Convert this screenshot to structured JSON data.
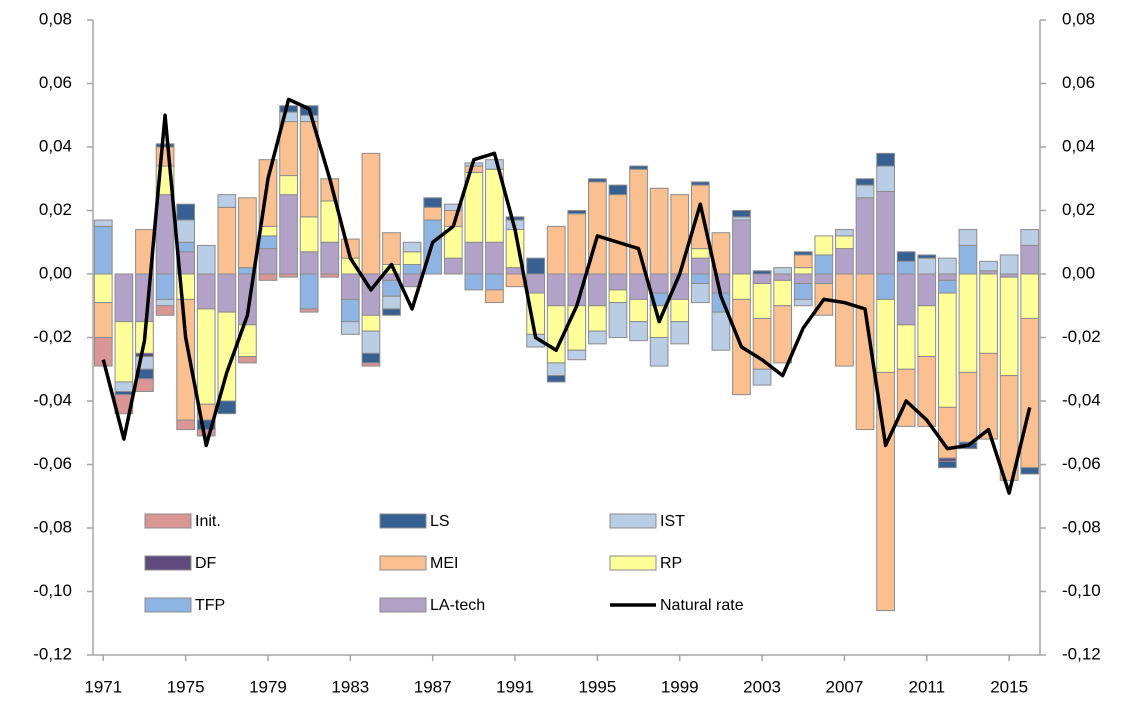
{
  "chart_data": {
    "type": "stacked-bar-line",
    "x": [
      1971,
      1972,
      1973,
      1974,
      1975,
      1976,
      1977,
      1978,
      1979,
      1980,
      1981,
      1982,
      1983,
      1984,
      1985,
      1986,
      1987,
      1988,
      1989,
      1990,
      1991,
      1992,
      1993,
      1994,
      1995,
      1996,
      1997,
      1998,
      1999,
      2000,
      2001,
      2002,
      2003,
      2004,
      2005,
      2006,
      2007,
      2008,
      2009,
      2010,
      2011,
      2012,
      2013,
      2014,
      2015,
      2016
    ],
    "xlim": [
      1970.5,
      2016.5
    ],
    "xticks": [
      1971,
      1975,
      1979,
      1983,
      1987,
      1991,
      1995,
      1999,
      2003,
      2007,
      2011,
      2015
    ],
    "ylim": [
      -0.12,
      0.08
    ],
    "yticks": [
      {
        "value": -0.12,
        "label": "-0,12"
      },
      {
        "value": -0.1,
        "label": "-0,10"
      },
      {
        "value": -0.08,
        "label": "-0,08"
      },
      {
        "value": -0.06,
        "label": "-0,06"
      },
      {
        "value": -0.04,
        "label": "-0,04"
      },
      {
        "value": -0.02,
        "label": "-0,02"
      },
      {
        "value": 0,
        "label": "0,00"
      },
      {
        "value": 0.02,
        "label": "0,02"
      },
      {
        "value": 0.04,
        "label": "0,04"
      },
      {
        "value": 0.06,
        "label": "0,06"
      },
      {
        "value": 0.08,
        "label": "0,08"
      }
    ],
    "y2lim": [
      -0.12,
      0.08
    ],
    "y2ticks": [
      {
        "value": -0.12,
        "label": "-0,12"
      },
      {
        "value": -0.1,
        "label": "-0,10"
      },
      {
        "value": -0.08,
        "label": "-0,08"
      },
      {
        "value": -0.06,
        "label": "-0,06"
      },
      {
        "value": -0.04,
        "label": "-0,04"
      },
      {
        "value": -0.02,
        "label": "-0,02"
      },
      {
        "value": 0,
        "label": "0,00"
      },
      {
        "value": 0.02,
        "label": "0,02"
      },
      {
        "value": 0.04,
        "label": "0,04"
      },
      {
        "value": 0.06,
        "label": "0,06"
      },
      {
        "value": 0.08,
        "label": "0,08"
      }
    ],
    "grid": false,
    "legend": "lower-left",
    "series": [
      {
        "name": "Init.",
        "color": "#d99694",
        "values": [
          -0.009,
          -0.006,
          -0.004,
          -0.003,
          -0.003,
          -0.002,
          0,
          -0.002,
          -0.002,
          -0.001,
          -0.001,
          -0.001,
          0,
          -0.001,
          0,
          0,
          0,
          0,
          0,
          0,
          0,
          0,
          0,
          0,
          0,
          0,
          0,
          0,
          0,
          0,
          0,
          0,
          0,
          0,
          0,
          0,
          0,
          0,
          0,
          0,
          0,
          0,
          0,
          0,
          0,
          0
        ]
      },
      {
        "name": "LS",
        "color": "#376092",
        "values": [
          0,
          -0.001,
          -0.003,
          0.001,
          0.005,
          -0.003,
          -0.004,
          0,
          0,
          0.002,
          0.003,
          0,
          0,
          -0.003,
          -0.002,
          0,
          0.003,
          0,
          0,
          0,
          0.001,
          0.005,
          -0.002,
          0.001,
          0.001,
          0.003,
          0.001,
          0,
          0,
          0.001,
          0,
          0.002,
          0.001,
          0,
          0.001,
          0,
          0,
          0.002,
          0.004,
          0.003,
          0.001,
          -0.002,
          -0.002,
          0,
          0,
          -0.002
        ]
      },
      {
        "name": "IST",
        "color": "#b9cde5",
        "values": [
          0.002,
          -0.003,
          -0.004,
          -0.002,
          0.007,
          0.009,
          0.004,
          0,
          0,
          0.003,
          0.002,
          0,
          -0.004,
          -0.007,
          -0.004,
          0.003,
          0,
          0.002,
          0.001,
          0.003,
          0.003,
          -0.004,
          -0.004,
          -0.003,
          -0.004,
          -0.011,
          -0.006,
          -0.009,
          -0.007,
          -0.006,
          -0.012,
          0.001,
          -0.005,
          0.002,
          -0.002,
          0,
          0.002,
          0.004,
          0.008,
          0,
          0.005,
          0.005,
          0.005,
          0.003,
          0.006,
          0.005
        ]
      },
      {
        "name": "DF",
        "color": "#604a7b",
        "values": [
          0,
          0,
          -0.001,
          0,
          0,
          0,
          0,
          0,
          0,
          0,
          0,
          0,
          0,
          0,
          0,
          0,
          0,
          0,
          0,
          0,
          0,
          0,
          0,
          0,
          0,
          0,
          0,
          0,
          0,
          0,
          0,
          0,
          0,
          0,
          0,
          0,
          0,
          0,
          0,
          0,
          0,
          -0.001,
          0,
          0,
          0,
          0
        ]
      },
      {
        "name": "MEI",
        "color": "#fac090",
        "values": [
          -0.011,
          0,
          0.014,
          0.006,
          -0.038,
          -0.005,
          0.021,
          0.022,
          0.021,
          0.017,
          0.03,
          0.007,
          0.006,
          0.038,
          0.01,
          0,
          0.004,
          0.005,
          0.002,
          -0.004,
          -0.004,
          0,
          0.015,
          0.019,
          0.029,
          0.025,
          0.033,
          0.027,
          0.025,
          0.02,
          0.013,
          -0.03,
          -0.016,
          -0.018,
          0.004,
          -0.01,
          -0.029,
          -0.049,
          -0.075,
          -0.018,
          -0.022,
          -0.016,
          -0.022,
          -0.027,
          -0.033,
          -0.047
        ]
      },
      {
        "name": "RP",
        "color": "#ffff99",
        "values": [
          -0.009,
          -0.019,
          -0.01,
          0.009,
          -0.008,
          -0.03,
          -0.028,
          -0.01,
          0.003,
          0.006,
          0.011,
          0.013,
          0.005,
          -0.005,
          0.003,
          0.004,
          0,
          0.01,
          0.022,
          0.023,
          0.012,
          -0.013,
          -0.018,
          -0.014,
          -0.008,
          -0.004,
          -0.007,
          -0.01,
          -0.007,
          0.003,
          0,
          -0.008,
          -0.011,
          -0.008,
          0.002,
          0.006,
          0.004,
          0,
          -0.023,
          -0.014,
          -0.016,
          -0.036,
          -0.031,
          -0.025,
          -0.031,
          -0.014
        ]
      },
      {
        "name": "TFP",
        "color": "#8db4e2",
        "values": [
          0.015,
          0,
          0,
          -0.008,
          0.003,
          0,
          0,
          0.002,
          0.004,
          0,
          -0.011,
          0,
          -0.007,
          0,
          -0.005,
          0.003,
          0.017,
          0,
          -0.005,
          -0.005,
          0,
          0,
          0,
          0,
          0,
          0,
          0,
          -0.004,
          0,
          -0.003,
          -0.006,
          0,
          0,
          0,
          -0.005,
          0.006,
          0,
          0,
          -0.008,
          0.004,
          0,
          -0.004,
          0.009,
          0,
          0,
          0
        ]
      },
      {
        "name": "LA-tech",
        "color": "#b3a2c7",
        "values": [
          0,
          -0.015,
          -0.015,
          0.025,
          0.007,
          -0.011,
          -0.012,
          -0.016,
          0.008,
          0.025,
          0.007,
          0.01,
          -0.008,
          -0.013,
          -0.002,
          -0.004,
          0,
          0.005,
          0.01,
          0.01,
          0.002,
          -0.006,
          -0.01,
          -0.01,
          -0.01,
          -0.005,
          -0.008,
          -0.006,
          -0.008,
          0.005,
          -0.006,
          0.017,
          -0.003,
          -0.002,
          -0.003,
          -0.003,
          0.008,
          0.024,
          0.026,
          -0.016,
          -0.01,
          -0.002,
          0,
          0.001,
          -0.001,
          0.009
        ]
      },
      {
        "name": "Natural rate",
        "color": "#000000",
        "type": "line",
        "values": [
          -0.027,
          -0.052,
          -0.021,
          0.05,
          -0.02,
          -0.054,
          -0.031,
          -0.013,
          0.03,
          0.055,
          0.052,
          0.03,
          0.005,
          -0.005,
          0.003,
          -0.011,
          0.01,
          0.015,
          0.036,
          0.038,
          0.014,
          -0.02,
          -0.024,
          -0.01,
          0.012,
          0.01,
          0.008,
          -0.015,
          0,
          0.022,
          -0.007,
          -0.023,
          -0.027,
          -0.032,
          -0.017,
          -0.008,
          -0.009,
          -0.011,
          -0.054,
          -0.04,
          -0.046,
          -0.055,
          -0.054,
          -0.049,
          -0.069,
          -0.042
        ]
      }
    ]
  }
}
